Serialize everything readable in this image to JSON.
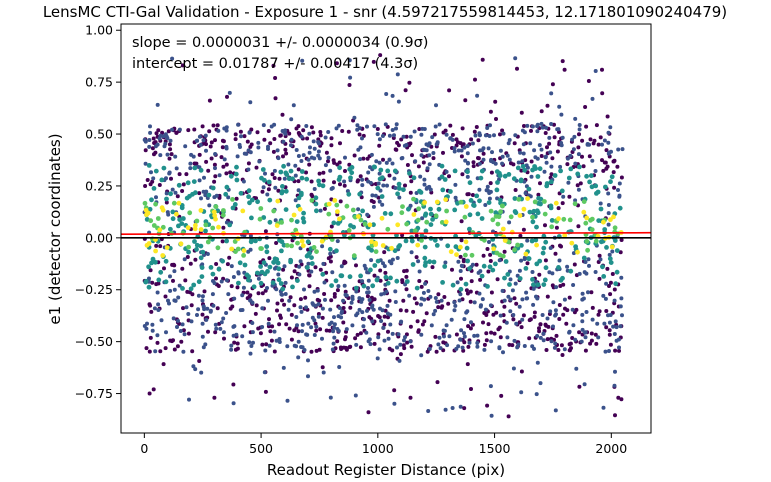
{
  "chart_data": {
    "type": "scatter",
    "title": "LensMC CTI-Gal Validation - Exposure 1 - snr (4.597217559814453, 12.171801090240479)",
    "xlabel": "Readout Register Distance (pix)",
    "ylabel": "e1 (detector coordinates)",
    "xlim": [
      -100,
      2170
    ],
    "ylim": [
      -0.94,
      1.03
    ],
    "xticks": [
      0,
      500,
      1000,
      1500,
      2000
    ],
    "xtick_labels": [
      "0",
      "500",
      "1000",
      "1500",
      "2000"
    ],
    "yticks": [
      -0.75,
      -0.5,
      -0.25,
      0.0,
      0.25,
      0.5,
      0.75,
      1.0
    ],
    "ytick_labels": [
      "−0.75",
      "−0.50",
      "−0.25",
      "0.00",
      "0.25",
      "0.50",
      "0.75",
      "1.00"
    ],
    "grid": false,
    "annotation_lines": [
      "slope = 0.0000031 +/- 0.0000034 (0.9σ)",
      "intercept = 0.01787 +/- 0.00417 (4.3σ)"
    ],
    "fit_line": {
      "slope": 3.1e-06,
      "intercept": 0.01787,
      "color": "#ff0000"
    },
    "zero_line": {
      "y": 0.0,
      "color": "#000000"
    },
    "scatter_x_range": [
      0,
      2048
    ],
    "scatter_y_core": [
      -0.55,
      0.55
    ],
    "scatter_y_outliers": [
      -0.86,
      0.88
    ],
    "colormap": [
      "#440154",
      "#3b528b",
      "#21918c",
      "#5ec962",
      "#fde725"
    ],
    "points": [
      {
        "x": 1010,
        "y": 0.88
      },
      {
        "x": 1800,
        "y": 0.81
      },
      {
        "x": 1960,
        "y": 0.81
      },
      {
        "x": 1560,
        "y": -0.86
      },
      {
        "x": 960,
        "y": -0.84
      },
      {
        "x": 1370,
        "y": -0.82
      },
      {
        "x": 40,
        "y": -0.73
      },
      {
        "x": 1750,
        "y": 0.74
      },
      {
        "x": 560,
        "y": 0.77
      },
      {
        "x": 2030,
        "y": -0.77
      },
      {
        "x": 300,
        "y": -0.77
      },
      {
        "x": 1140,
        "y": -0.77
      }
    ]
  }
}
